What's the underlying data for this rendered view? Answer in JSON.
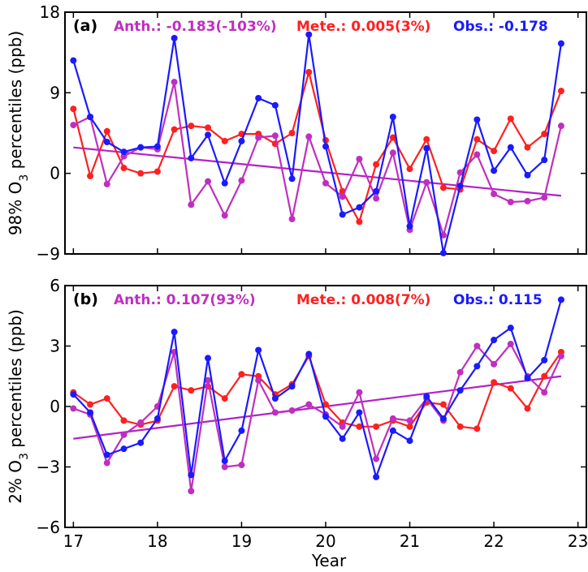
{
  "figure": {
    "xlabel": "Year",
    "xticks": [
      17,
      18,
      19,
      20,
      21,
      22,
      23
    ],
    "colors": {
      "anth": "#bf2fbf",
      "mete": "#ff2020",
      "obs": "#1a1aff",
      "trend": "#b320c8"
    }
  },
  "chart_data": [
    {
      "type": "line",
      "panel_label": "(a)",
      "ylabel_prefix": "98% O",
      "ylabel_sub": "3",
      "ylabel_suffix": " percentiles (ppb)",
      "xlim": [
        16.9,
        23.1
      ],
      "ylim": [
        -9,
        18
      ],
      "yticks": [
        -9,
        0,
        9,
        18
      ],
      "annotations": [
        {
          "key": "anth",
          "text": "Anth.: -0.183(-103%)"
        },
        {
          "key": "mete",
          "text": "Mete.: 0.005(3%)"
        },
        {
          "key": "obs",
          "text": "Obs.: -0.178"
        }
      ],
      "x": [
        17.0,
        17.2,
        17.4,
        17.6,
        17.8,
        18.0,
        18.2,
        18.4,
        18.6,
        18.8,
        19.0,
        19.2,
        19.4,
        19.6,
        19.8,
        20.0,
        20.2,
        20.4,
        20.6,
        20.8,
        21.0,
        21.2,
        21.4,
        21.6,
        21.8,
        22.0,
        22.2,
        22.4,
        22.6,
        22.8
      ],
      "series": [
        {
          "key": "mete",
          "values": [
            7.2,
            -0.3,
            4.7,
            0.6,
            0.0,
            0.2,
            4.9,
            5.3,
            5.1,
            3.6,
            4.4,
            4.4,
            3.3,
            4.5,
            11.3,
            3.7,
            -2.0,
            -5.4,
            1.0,
            4.0,
            0.5,
            3.8,
            -1.6,
            -1.8,
            3.8,
            2.5,
            6.1,
            2.9,
            4.4,
            9.2
          ]
        },
        {
          "key": "anth",
          "values": [
            5.4,
            6.3,
            -1.2,
            1.9,
            2.9,
            2.7,
            10.2,
            -3.5,
            -0.9,
            -4.7,
            -0.8,
            4.0,
            4.2,
            -5.1,
            4.1,
            -1.1,
            -2.6,
            1.6,
            -2.8,
            2.3,
            -6.3,
            -1.0,
            -6.9,
            0.1,
            2.1,
            -2.3,
            -3.2,
            -3.1,
            -2.7,
            5.3
          ]
        },
        {
          "key": "obs",
          "values": [
            12.6,
            6.3,
            3.5,
            2.4,
            2.9,
            3.0,
            15.1,
            1.7,
            4.3,
            -1.1,
            3.6,
            8.4,
            7.6,
            -0.6,
            15.5,
            3.0,
            -4.6,
            -3.8,
            -2.0,
            6.3,
            -5.9,
            2.8,
            -8.9,
            -1.4,
            6.0,
            0.3,
            2.9,
            -0.2,
            1.5,
            14.5
          ]
        }
      ],
      "trend": {
        "key": "trend",
        "x": [
          17.0,
          22.8
        ],
        "y": [
          2.9,
          -2.5
        ]
      }
    },
    {
      "type": "line",
      "panel_label": "(b)",
      "ylabel_prefix": "2% O",
      "ylabel_sub": "3",
      "ylabel_suffix": " percentiles (ppb)",
      "xlim": [
        16.9,
        23.1
      ],
      "ylim": [
        -6,
        6
      ],
      "yticks": [
        -6,
        -3,
        0,
        3,
        6
      ],
      "annotations": [
        {
          "key": "anth",
          "text": "Anth.: 0.107(93%)"
        },
        {
          "key": "mete",
          "text": "Mete.: 0.008(7%)"
        },
        {
          "key": "obs",
          "text": "Obs.: 0.115"
        }
      ],
      "x": [
        17.0,
        17.2,
        17.4,
        17.6,
        17.8,
        18.0,
        18.2,
        18.4,
        18.6,
        18.8,
        19.0,
        19.2,
        19.4,
        19.6,
        19.8,
        20.0,
        20.2,
        20.4,
        20.6,
        20.8,
        21.0,
        21.2,
        21.4,
        21.6,
        21.8,
        22.0,
        22.2,
        22.4,
        22.6,
        22.8
      ],
      "series": [
        {
          "key": "mete",
          "values": [
            0.7,
            0.1,
            0.4,
            -0.7,
            -0.9,
            -0.7,
            1.0,
            0.8,
            1.0,
            0.4,
            1.6,
            1.5,
            0.6,
            1.1,
            2.5,
            0.1,
            -0.8,
            -1.0,
            -1.0,
            -0.7,
            -1.0,
            0.2,
            0.1,
            -1.0,
            -1.1,
            1.2,
            0.9,
            -0.1,
            1.5,
            2.7
          ]
        },
        {
          "key": "anth",
          "values": [
            -0.1,
            -0.4,
            -2.8,
            -1.4,
            -0.8,
            0.0,
            2.7,
            -4.2,
            1.3,
            -3.0,
            -2.9,
            1.3,
            -0.3,
            -0.2,
            0.1,
            -0.4,
            -1.0,
            0.7,
            -2.6,
            -0.6,
            -0.7,
            0.4,
            -0.7,
            1.7,
            3.0,
            2.1,
            3.1,
            1.5,
            0.7,
            2.5
          ]
        },
        {
          "key": "obs",
          "values": [
            0.6,
            -0.3,
            -2.4,
            -2.1,
            -1.8,
            -0.6,
            3.7,
            -3.4,
            2.4,
            -2.7,
            -1.2,
            2.8,
            0.4,
            1.0,
            2.6,
            -0.5,
            -1.6,
            -0.3,
            -3.5,
            -1.2,
            -1.7,
            0.5,
            -0.6,
            0.8,
            2.0,
            3.3,
            3.9,
            1.4,
            2.3,
            5.3
          ]
        }
      ],
      "trend": {
        "key": "trend",
        "x": [
          17.0,
          22.8
        ],
        "y": [
          -1.6,
          1.5
        ]
      }
    }
  ]
}
